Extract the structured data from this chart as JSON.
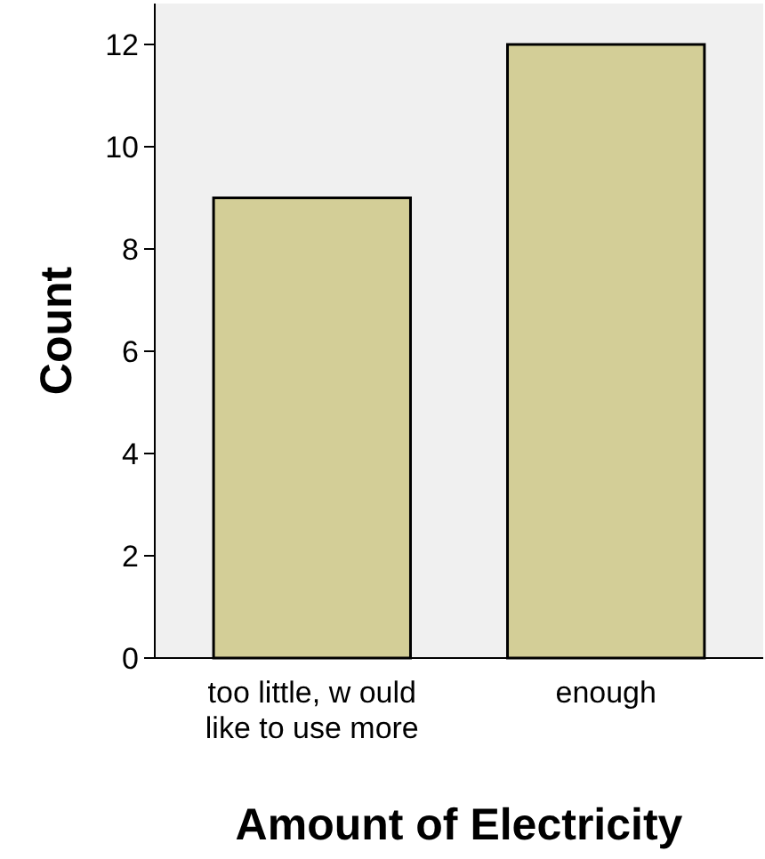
{
  "chart_data": {
    "type": "bar",
    "xlabel": "Amount of Electricity",
    "ylabel": "Count",
    "categories": [
      "too little, w ould like to use more",
      "enough"
    ],
    "values": [
      9,
      12
    ],
    "color": "#d3ce97",
    "ylim": [
      0,
      12.8
    ],
    "yticks": [
      0,
      2,
      4,
      6,
      8,
      10,
      12
    ],
    "grid": false
  }
}
